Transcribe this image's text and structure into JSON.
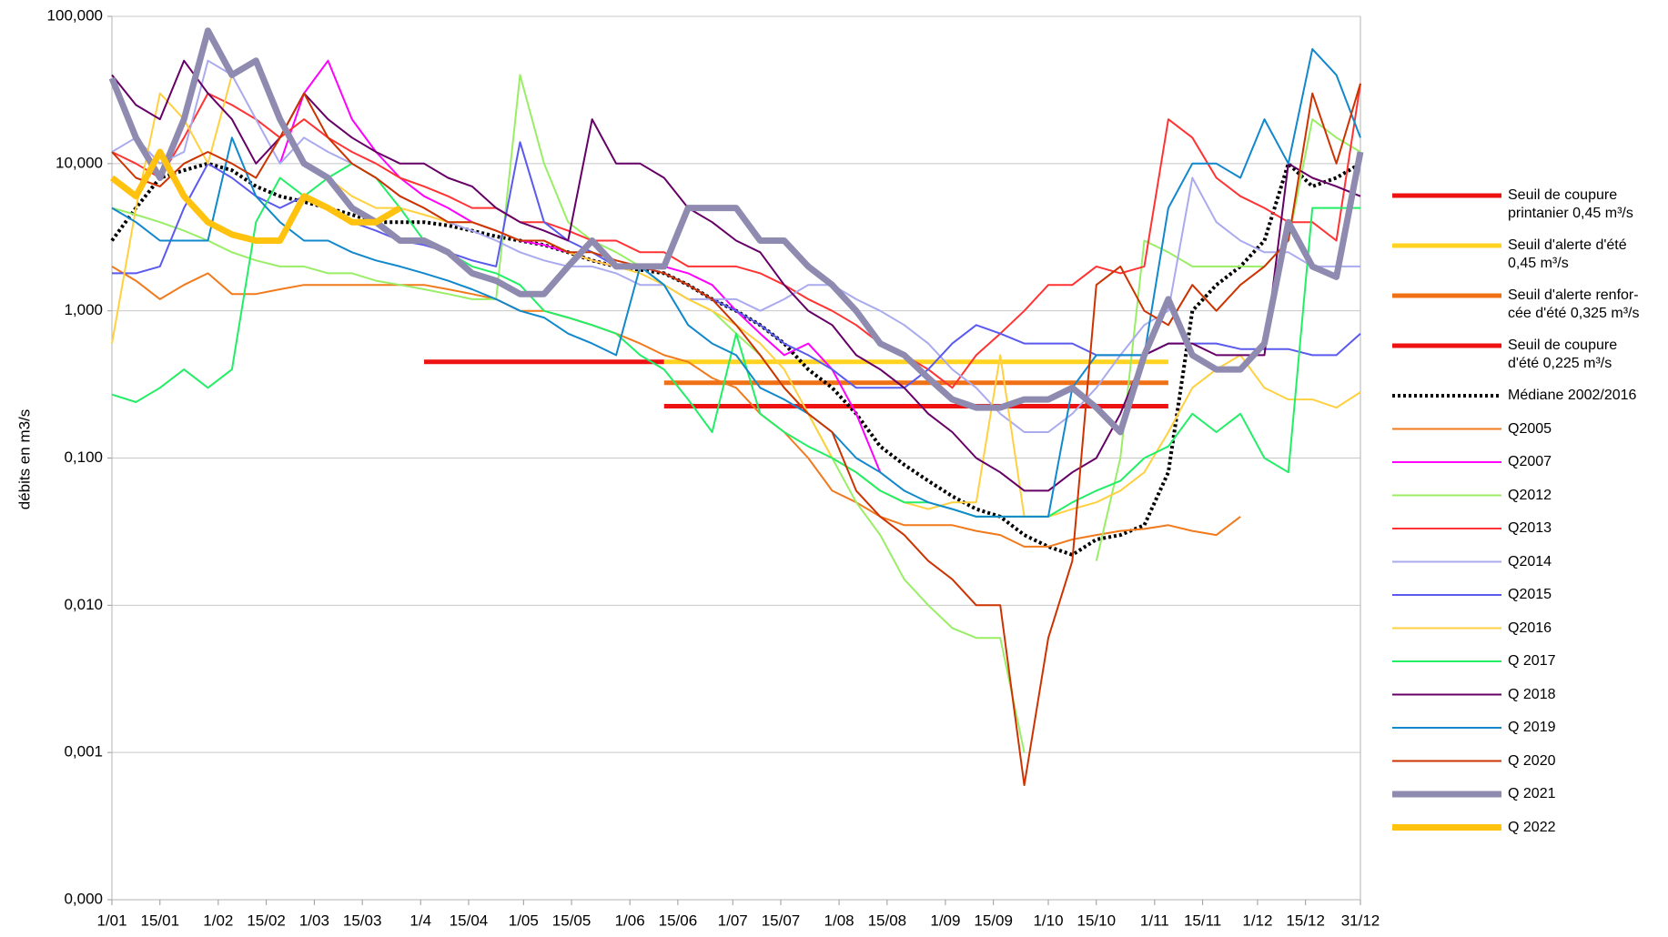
{
  "chart_data": {
    "type": "line",
    "y_label": "débits en m3/s",
    "log_scale_y": true,
    "grid": true,
    "legend": "right",
    "x": [
      1,
      8,
      15,
      22,
      29,
      36,
      43,
      50,
      57,
      64,
      71,
      78,
      85,
      92,
      99,
      106,
      113,
      120,
      127,
      134,
      141,
      148,
      155,
      162,
      169,
      176,
      183,
      190,
      197,
      204,
      211,
      218,
      225,
      232,
      239,
      246,
      253,
      260,
      267,
      274,
      281,
      288,
      295,
      302,
      309,
      316,
      323,
      330,
      337,
      344,
      351,
      358,
      365
    ],
    "xlim": [
      1,
      365
    ],
    "xticks": [
      {
        "value": 1,
        "label": "1/01"
      },
      {
        "value": 15,
        "label": "15/01"
      },
      {
        "value": 32,
        "label": "1/02"
      },
      {
        "value": 46,
        "label": "15/02"
      },
      {
        "value": 60,
        "label": "1/03"
      },
      {
        "value": 74,
        "label": "15/03"
      },
      {
        "value": 91,
        "label": "1/4"
      },
      {
        "value": 105,
        "label": "15/04"
      },
      {
        "value": 121,
        "label": "1/05"
      },
      {
        "value": 135,
        "label": "15/05"
      },
      {
        "value": 152,
        "label": "1/06"
      },
      {
        "value": 166,
        "label": "15/06"
      },
      {
        "value": 182,
        "label": "1/07"
      },
      {
        "value": 196,
        "label": "15/07"
      },
      {
        "value": 213,
        "label": "1/08"
      },
      {
        "value": 227,
        "label": "15/08"
      },
      {
        "value": 244,
        "label": "1/09"
      },
      {
        "value": 258,
        "label": "15/09"
      },
      {
        "value": 274,
        "label": "1/10"
      },
      {
        "value": 288,
        "label": "15/10"
      },
      {
        "value": 305,
        "label": "1/11"
      },
      {
        "value": 319,
        "label": "15/11"
      },
      {
        "value": 335,
        "label": "1/12"
      },
      {
        "value": 349,
        "label": "15/12"
      },
      {
        "value": 365,
        "label": "31/12"
      }
    ],
    "ylim": [
      0.0001,
      100
    ],
    "yticks": [
      {
        "value": 0.0001,
        "label": "0,000"
      },
      {
        "value": 0.001,
        "label": "0,001"
      },
      {
        "value": 0.01,
        "label": "0,010"
      },
      {
        "value": 0.1,
        "label": "0,100"
      },
      {
        "value": 1,
        "label": "1,000"
      },
      {
        "value": 10,
        "label": "10,000"
      },
      {
        "value": 100,
        "label": "100,000"
      }
    ],
    "series": [
      {
        "name": "Seuil de coupure\nprintanier 0,45 m³/s",
        "color": "#ee1111",
        "line_width": 5,
        "values": [
          null,
          null,
          null,
          null,
          null,
          null,
          null,
          null,
          null,
          null,
          null,
          null,
          null,
          0.45,
          0.45,
          0.45,
          0.45,
          0.45,
          0.45,
          0.45,
          0.45,
          0.45,
          0.45,
          0.45,
          null,
          null,
          null,
          null,
          null,
          null,
          null,
          null,
          null,
          null,
          null,
          null,
          null,
          null,
          null,
          null,
          null,
          null,
          null,
          null,
          null,
          null,
          null,
          null,
          null,
          null,
          null,
          null,
          null
        ]
      },
      {
        "name": "Seuil d'alerte d'été\n0,45 m³/s",
        "color": "#ffd320",
        "line_width": 5,
        "values": [
          null,
          null,
          null,
          null,
          null,
          null,
          null,
          null,
          null,
          null,
          null,
          null,
          null,
          null,
          null,
          null,
          null,
          null,
          null,
          null,
          null,
          null,
          null,
          0.45,
          0.45,
          0.45,
          0.45,
          0.45,
          0.45,
          0.45,
          0.45,
          0.45,
          0.45,
          0.45,
          0.45,
          0.45,
          0.45,
          0.45,
          0.45,
          0.45,
          0.45,
          0.45,
          0.45,
          0.45,
          0.45,
          null,
          null,
          null,
          null,
          null,
          null,
          null,
          null
        ]
      },
      {
        "name": "Seuil d'alerte renfor-\ncée d'été 0,325 m³/s",
        "color": "#f07015",
        "line_width": 5,
        "values": [
          null,
          null,
          null,
          null,
          null,
          null,
          null,
          null,
          null,
          null,
          null,
          null,
          null,
          null,
          null,
          null,
          null,
          null,
          null,
          null,
          null,
          null,
          null,
          0.325,
          0.325,
          0.325,
          0.325,
          0.325,
          0.325,
          0.325,
          0.325,
          0.325,
          0.325,
          0.325,
          0.325,
          0.325,
          0.325,
          0.325,
          0.325,
          0.325,
          0.325,
          0.325,
          0.325,
          0.325,
          0.325,
          null,
          null,
          null,
          null,
          null,
          null,
          null,
          null
        ]
      },
      {
        "name": "Seuil de coupure\nd'été 0,225 m³/s",
        "color": "#ee1111",
        "line_width": 5,
        "values": [
          null,
          null,
          null,
          null,
          null,
          null,
          null,
          null,
          null,
          null,
          null,
          null,
          null,
          null,
          null,
          null,
          null,
          null,
          null,
          null,
          null,
          null,
          null,
          0.225,
          0.225,
          0.225,
          0.225,
          0.225,
          0.225,
          0.225,
          0.225,
          0.225,
          0.225,
          0.225,
          0.225,
          0.225,
          0.225,
          0.225,
          0.225,
          0.225,
          0.225,
          0.225,
          0.225,
          0.225,
          0.225,
          null,
          null,
          null,
          null,
          null,
          null,
          null,
          null
        ]
      },
      {
        "name": "Médiane 2002/2016",
        "color": "#000000",
        "line_width": 4,
        "line_style": "dotted",
        "values": [
          3,
          5,
          8,
          9,
          10,
          9,
          7,
          6,
          5.5,
          5,
          4.5,
          4,
          4,
          4,
          3.8,
          3.5,
          3.2,
          3,
          2.8,
          2.5,
          2.2,
          2,
          1.9,
          1.8,
          1.5,
          1.2,
          1,
          0.8,
          0.6,
          0.4,
          0.3,
          0.2,
          0.12,
          0.09,
          0.07,
          0.055,
          0.045,
          0.04,
          0.03,
          0.025,
          0.022,
          0.028,
          0.03,
          0.035,
          0.08,
          1,
          1.5,
          2,
          3,
          10,
          7,
          8,
          10
        ]
      },
      {
        "name": "Q2005",
        "color": "#f07a1c",
        "line_width": 2,
        "values": [
          2,
          1.6,
          1.2,
          1.5,
          1.8,
          1.3,
          1.3,
          1.4,
          1.5,
          1.5,
          1.5,
          1.5,
          1.5,
          1.5,
          1.4,
          1.3,
          1.2,
          1,
          1,
          0.9,
          0.8,
          0.7,
          0.6,
          0.5,
          0.45,
          0.35,
          0.3,
          0.2,
          0.15,
          0.1,
          0.06,
          0.05,
          0.04,
          0.035,
          0.035,
          0.035,
          0.032,
          0.03,
          0.025,
          0.025,
          0.028,
          0.03,
          0.032,
          0.033,
          0.035,
          0.032,
          0.03,
          0.04,
          null,
          null,
          null,
          null,
          null
        ]
      },
      {
        "name": "Q2007",
        "color": "#ff00ff",
        "line_width": 2,
        "values": [
          null,
          null,
          null,
          null,
          null,
          null,
          null,
          10,
          30,
          50,
          20,
          12,
          8,
          6,
          5,
          4,
          3.5,
          3,
          2.8,
          2.5,
          2.2,
          2,
          2,
          2,
          1.8,
          1.5,
          1,
          0.7,
          0.5,
          0.6,
          0.4,
          0.2,
          0.08,
          null,
          null,
          null,
          null,
          null,
          null,
          null,
          null,
          null,
          null,
          null,
          null,
          null,
          null,
          null,
          null,
          null,
          null,
          null,
          null
        ]
      },
      {
        "name": "Q2012",
        "color": "#99ee66",
        "line_width": 2,
        "values": [
          5,
          4.5,
          4,
          3.5,
          3,
          2.5,
          2.2,
          2,
          2,
          1.8,
          1.8,
          1.6,
          1.5,
          1.4,
          1.3,
          1.2,
          1.2,
          40,
          10,
          4,
          3,
          2.5,
          2,
          1.5,
          1.2,
          1,
          0.7,
          0.5,
          0.3,
          0.2,
          0.1,
          0.05,
          0.03,
          0.015,
          0.01,
          0.007,
          0.006,
          0.006,
          0.001,
          null,
          null,
          0.02,
          0.1,
          3,
          2.5,
          2,
          2,
          2,
          2,
          3,
          20,
          15,
          12
        ]
      },
      {
        "name": "Q2013",
        "color": "#ff3333",
        "line_width": 2,
        "values": [
          12,
          10,
          8,
          15,
          30,
          25,
          20,
          15,
          20,
          15,
          12,
          10,
          8,
          7,
          6,
          5,
          5,
          4,
          4,
          3.5,
          3,
          3,
          2.5,
          2.5,
          2,
          2,
          2,
          1.8,
          1.5,
          1.2,
          1,
          0.8,
          0.6,
          0.5,
          0.4,
          0.3,
          0.5,
          0.7,
          1,
          1.5,
          1.5,
          2,
          1.8,
          2,
          20,
          15,
          8,
          6,
          5,
          4,
          4,
          3,
          35
        ]
      },
      {
        "name": "Q2014",
        "color": "#aaaaee",
        "line_width": 2,
        "values": [
          12,
          15,
          10,
          12,
          50,
          40,
          20,
          10,
          15,
          12,
          10,
          8,
          6,
          5,
          4,
          3.5,
          3,
          2.5,
          2.2,
          2,
          2,
          1.8,
          1.5,
          1.5,
          1.2,
          1.2,
          1.2,
          1,
          1.2,
          1.5,
          1.5,
          1.2,
          1,
          0.8,
          0.6,
          0.4,
          0.3,
          0.2,
          0.15,
          0.15,
          0.2,
          0.3,
          0.5,
          0.8,
          1,
          8,
          4,
          3,
          2.5,
          2.5,
          2,
          2,
          2
        ]
      },
      {
        "name": "Q2015",
        "color": "#5a5aee",
        "line_width": 2,
        "values": [
          1.8,
          1.8,
          2,
          5,
          10,
          8,
          6,
          5,
          6,
          5,
          4,
          3.5,
          3,
          2.8,
          2.5,
          2.2,
          2,
          14,
          4,
          3,
          2.5,
          2,
          2,
          1.8,
          1.5,
          1.2,
          1,
          0.8,
          0.6,
          0.5,
          0.4,
          0.3,
          0.3,
          0.3,
          0.4,
          0.6,
          0.8,
          0.7,
          0.6,
          0.6,
          0.6,
          0.5,
          0.5,
          0.5,
          0.6,
          0.6,
          0.6,
          0.55,
          0.55,
          0.55,
          0.5,
          0.5,
          0.7
        ]
      },
      {
        "name": "Q2016",
        "color": "#ffd040",
        "line_width": 2,
        "values": [
          0.6,
          5,
          30,
          20,
          10,
          40,
          50,
          20,
          10,
          8,
          6,
          5,
          5,
          4.5,
          4,
          4,
          3.5,
          3,
          3,
          2.5,
          2.2,
          2,
          1.8,
          1.5,
          1.2,
          1,
          0.8,
          0.6,
          0.4,
          0.2,
          0.1,
          0.08,
          0.06,
          0.05,
          0.045,
          0.05,
          0.05,
          0.5,
          0.04,
          0.04,
          0.045,
          0.05,
          0.06,
          0.08,
          0.15,
          0.3,
          0.4,
          0.5,
          0.3,
          0.25,
          0.25,
          0.22,
          0.28
        ]
      },
      {
        "name": "Q 2017",
        "color": "#22ee66",
        "line_width": 2,
        "values": [
          0.27,
          0.24,
          0.3,
          0.4,
          0.3,
          0.4,
          4,
          8,
          6,
          8,
          10,
          8,
          5,
          3,
          2.5,
          2,
          1.8,
          1.5,
          1,
          0.9,
          0.8,
          0.7,
          0.5,
          0.4,
          0.25,
          0.15,
          0.7,
          0.2,
          0.15,
          0.12,
          0.1,
          0.08,
          0.06,
          0.05,
          0.05,
          0.045,
          0.04,
          0.04,
          0.04,
          0.04,
          0.05,
          0.06,
          0.07,
          0.1,
          0.12,
          0.2,
          0.15,
          0.2,
          0.1,
          0.08,
          5,
          5,
          5
        ]
      },
      {
        "name": "Q 2018",
        "color": "#660066",
        "line_width": 2,
        "values": [
          40,
          25,
          20,
          50,
          30,
          20,
          10,
          15,
          30,
          20,
          15,
          12,
          10,
          10,
          8,
          7,
          5,
          4,
          3.5,
          3,
          20,
          10,
          10,
          8,
          5,
          4,
          3,
          2.5,
          1.5,
          1,
          0.8,
          0.5,
          0.4,
          0.3,
          0.2,
          0.15,
          0.1,
          0.08,
          0.06,
          0.06,
          0.08,
          0.1,
          0.2,
          0.5,
          0.6,
          0.6,
          0.5,
          0.5,
          0.5,
          10,
          8,
          7,
          6
        ]
      },
      {
        "name": "Q 2019",
        "color": "#1188cc",
        "line_width": 2,
        "values": [
          5,
          4,
          3,
          3,
          3,
          15,
          6,
          4,
          3,
          3,
          2.5,
          2.2,
          2,
          1.8,
          1.6,
          1.4,
          1.2,
          1,
          0.9,
          0.7,
          0.6,
          0.5,
          2,
          1.5,
          0.8,
          0.6,
          0.5,
          0.3,
          0.25,
          0.2,
          0.15,
          0.1,
          0.08,
          0.06,
          0.05,
          0.045,
          0.04,
          0.04,
          0.04,
          0.04,
          0.3,
          0.5,
          0.5,
          0.5,
          5,
          10,
          10,
          8,
          20,
          10,
          60,
          40,
          15
        ]
      },
      {
        "name": "Q 2020",
        "color": "#cc3300",
        "line_width": 2,
        "values": [
          12,
          8,
          7,
          10,
          12,
          10,
          8,
          15,
          30,
          15,
          10,
          8,
          6,
          5,
          4,
          4,
          3.5,
          3,
          3,
          2.5,
          2.5,
          2.2,
          2,
          1.8,
          1.5,
          1.2,
          0.8,
          0.5,
          0.3,
          0.2,
          0.15,
          0.06,
          0.04,
          0.03,
          0.02,
          0.015,
          0.01,
          0.01,
          0.0006,
          0.006,
          0.02,
          1.5,
          2,
          1,
          0.8,
          1.5,
          1,
          1.5,
          2,
          3,
          30,
          10,
          35
        ]
      },
      {
        "name": "Q 2021",
        "color": "#8f8ab0",
        "line_width": 7,
        "values": [
          38,
          15,
          8,
          20,
          80,
          40,
          50,
          20,
          10,
          8,
          5,
          4,
          3,
          3,
          2.5,
          1.8,
          1.6,
          1.3,
          1.3,
          2,
          3,
          2,
          2,
          2,
          5,
          5,
          5,
          3,
          3,
          2,
          1.5,
          1,
          0.6,
          0.5,
          0.35,
          0.25,
          0.22,
          0.22,
          0.25,
          0.25,
          0.3,
          0.22,
          0.15,
          0.5,
          1.2,
          0.5,
          0.4,
          0.4,
          0.6,
          4,
          2,
          1.7,
          12
        ]
      },
      {
        "name": "Q 2022",
        "color": "#ffc20e",
        "line_width": 7,
        "values": [
          8,
          6,
          12,
          6,
          4,
          3.3,
          3,
          3,
          6,
          5,
          4,
          4,
          5,
          null,
          null,
          null,
          null,
          null,
          null,
          null,
          null,
          null,
          null,
          null,
          null,
          null,
          null,
          null,
          null,
          null,
          null,
          null,
          null,
          null,
          null,
          null,
          null,
          null,
          null,
          null,
          null,
          null,
          null,
          null,
          null,
          null,
          null,
          null,
          null,
          null,
          null,
          null,
          null
        ]
      }
    ]
  }
}
